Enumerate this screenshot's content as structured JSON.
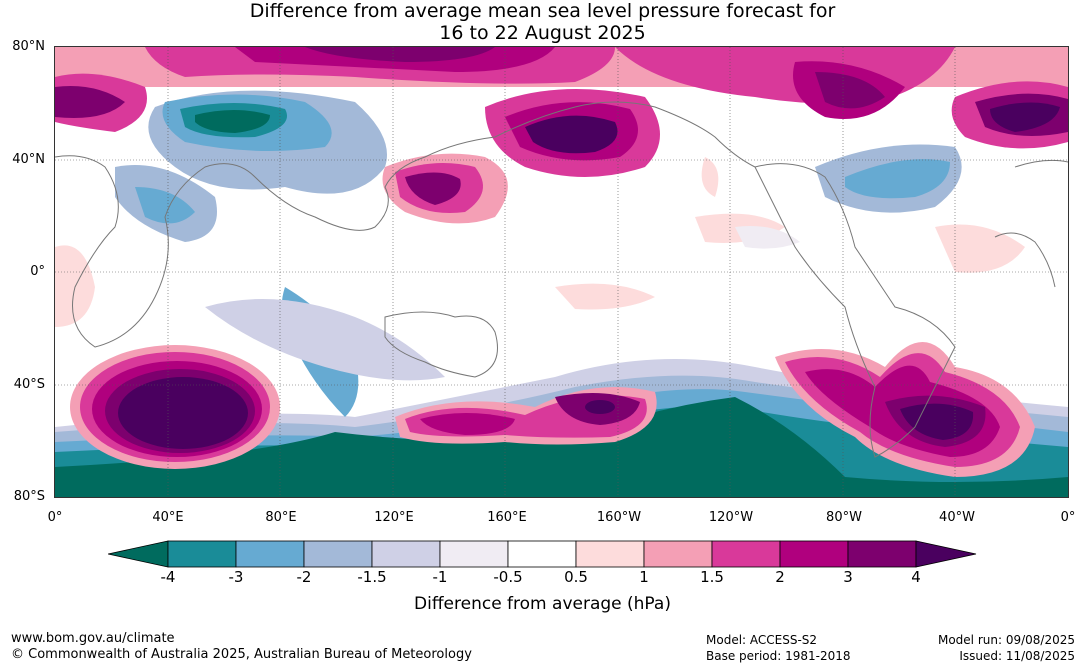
{
  "title_line1": "Difference from average mean sea level pressure forecast for",
  "title_line2": "16 to 22 August 2025",
  "lat_labels": [
    "80°N",
    "40°N",
    "0°",
    "40°S",
    "80°S"
  ],
  "lon_labels": [
    "0°",
    "40°E",
    "80°E",
    "120°E",
    "160°E",
    "160°W",
    "120°W",
    "80°W",
    "40°W",
    "0°"
  ],
  "colorbar": {
    "title": "Difference from average (hPa)",
    "ticks": [
      "-4",
      "-3",
      "-2",
      "-1.5",
      "-1",
      "-0.5",
      "0.5",
      "1",
      "1.5",
      "2",
      "3",
      "4"
    ],
    "colors": [
      "#006b5e",
      "#1a8c98",
      "#66aad2",
      "#a3b9d8",
      "#cfd0e6",
      "#f0ecf3",
      "#ffffff",
      "#fddcdc",
      "#f49fb5",
      "#d9399a",
      "#b0007e",
      "#7d006e",
      "#4a005f"
    ]
  },
  "footer": {
    "site": "www.bom.gov.au/climate",
    "copyright": "© Commonwealth of Australia 2025, Australian Bureau of Meteorology",
    "model": "Model: ACCESS-S2",
    "base_period": "Base period: 1981-2018",
    "model_run": "Model run: 09/08/2025",
    "issued": "Issued: 11/08/2025"
  }
}
